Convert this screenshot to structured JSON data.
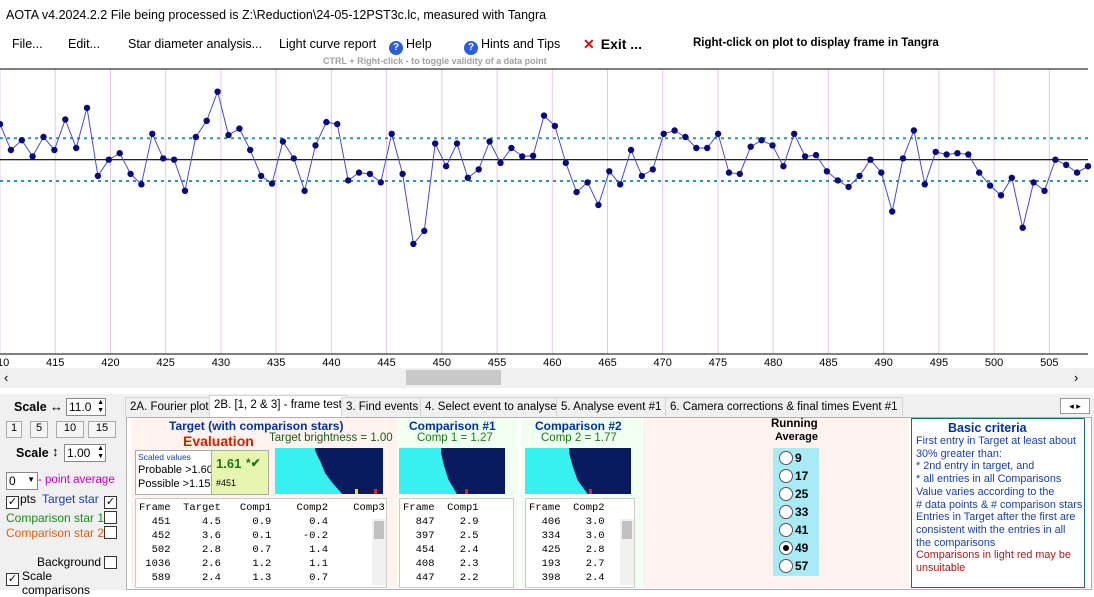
{
  "title_bar": {
    "text": "AOTA v4.2024.2.2     File being processed is Z:\\Reduction\\24-05-12PST3c.lc, measured with Tangra"
  },
  "menu": {
    "file": "File...",
    "edit": "Edit...",
    "star_diameter": "Star diameter analysis...",
    "light_curve": "Light curve report",
    "help": "Help",
    "hints": "Hints and Tips",
    "exit": "Exit ...",
    "right_click_hint": "Right-click on plot to display frame in Tangra",
    "ctrl_hint": "CTRL + Right-click  -  to toggle validity of a data point"
  },
  "plot": {
    "x_ticks": [
      "410",
      "415",
      "420",
      "425",
      "430",
      "435",
      "440",
      "445",
      "450",
      "455",
      "460",
      "465",
      "470",
      "475",
      "480",
      "485",
      "490",
      "495",
      "500",
      "505"
    ],
    "x_start": 410,
    "x_end": 508.5,
    "values": [
      0.55,
      0.15,
      0.3,
      0.05,
      0.35,
      0.15,
      0.62,
      0.18,
      0.8,
      -0.25,
      0.0,
      0.1,
      -0.22,
      -0.38,
      0.4,
      0.02,
      0.0,
      -0.48,
      0.35,
      0.6,
      1.05,
      0.38,
      0.48,
      0.15,
      -0.25,
      -0.37,
      0.28,
      0.02,
      -0.48,
      0.22,
      0.58,
      0.55,
      -0.32,
      -0.2,
      -0.22,
      -0.35,
      0.4,
      -0.22,
      -1.3,
      -1.1,
      0.25,
      -0.1,
      0.25,
      -0.28,
      -0.15,
      0.28,
      -0.05,
      0.18,
      0.05,
      0.06,
      0.68,
      0.52,
      -0.05,
      -0.5,
      -0.35,
      -0.7,
      -0.18,
      -0.38,
      0.15,
      -0.25,
      -0.15,
      0.4,
      0.45,
      0.35,
      0.18,
      0.18,
      0.4,
      -0.2,
      -0.22,
      0.2,
      0.3,
      0.22,
      -0.1,
      0.4,
      0.05,
      0.07,
      -0.18,
      -0.32,
      -0.42,
      -0.25,
      0.0,
      -0.2,
      -0.8,
      0.02,
      0.45,
      -0.38,
      0.12,
      0.08,
      0.1,
      0.08,
      -0.2,
      -0.4,
      -0.55,
      -0.28,
      -1.05,
      -0.35,
      -0.48,
      0.0,
      -0.08,
      -0.2,
      -0.1
    ],
    "band_upper": 0.33,
    "band_lower": -0.33,
    "ylim": [
      -3.0,
      1.4
    ]
  },
  "tabs": [
    "2A. Fourier plot",
    "2B. [1, 2 & 3] - frame test",
    "3. Find events",
    "4. Select event to analyse",
    "5. Analyse event #1",
    "6. Camera corrections & final times Event #1"
  ],
  "left_panel": {
    "scale_h_label": "Scale",
    "scale_h_arrow": "↔",
    "scale_h_value": "11.0",
    "buttons": [
      "1",
      "5",
      "10",
      "15"
    ],
    "scale_v_label": "Scale",
    "scale_v_arrow": "↕",
    "scale_v_value": "1.00",
    "point_avg_value": "0",
    "point_avg_label": "- point average",
    "pts_label": "pts",
    "target_star": "Target star",
    "comparison1": "Comparison star 1",
    "comparison2": "Comparison star 2",
    "background": "Background",
    "scale_comparisons": "Scale comparisons"
  },
  "target_panel": {
    "heading": "Target (with comparison stars)",
    "evaluation": "Evaluation",
    "brightness": "Target  brightness = 1.00",
    "scaled_values": "Scaled values",
    "probable": "Probable >1.60",
    "possible": "Possible  >1.15",
    "score": "1.61",
    "score_mark": "*✔",
    "score_frame": "#451",
    "headers": "Frame  Target   Comp1    Comp2    Comp3",
    "rows": [
      "  451     4.5     0.9      0.4",
      "  452     3.6     0.1     -0.2",
      "  502     2.8     0.7      1.4",
      " 1036     2.6     1.2      1.1",
      "  589     2.4     1.3      0.7"
    ]
  },
  "comp1_panel": {
    "heading": "Comparison #1",
    "sub": "Comp 1 = 1.27",
    "headers": "Frame  Comp1",
    "rows": [
      "  847    2.9",
      "  397    2.5",
      "  454    2.4",
      "  408    2.3",
      "  447    2.2"
    ]
  },
  "comp2_panel": {
    "heading": "Comparison #2",
    "sub": "Comp 2 = 1.77",
    "headers": "Frame  Comp2",
    "rows": [
      "  406    3.0",
      "  334    3.0",
      "  425    2.8",
      "  193    2.7",
      "  398    2.4"
    ]
  },
  "running_average": {
    "heading1": "Running",
    "heading2": "Average",
    "options": [
      "9",
      "17",
      "25",
      "33",
      "41",
      "49",
      "57"
    ],
    "selected": "49"
  },
  "criteria": {
    "heading": "Basic criteria",
    "lines": [
      {
        "text": "First entry in Target at least about",
        "color": "#1a3fa8"
      },
      {
        "text": "30% greater than:",
        "color": "#1a3fa8"
      },
      {
        "text": "*  2nd  entry in target, and",
        "color": "#1a3fa8"
      },
      {
        "text": "*  all entries in all Comparisons",
        "color": "#1a3fa8"
      },
      {
        "text": "Value varies according to the",
        "color": "#1a3fa8"
      },
      {
        "text": "# data points & # comparison stars",
        "color": "#1a3fa8"
      },
      {
        "text": "Entries in Target after the first are",
        "color": "#1a3fa8"
      },
      {
        "text": "consistent with the entries in all",
        "color": "#1a3fa8"
      },
      {
        "text": "the comparisons",
        "color": "#1a3fa8"
      },
      {
        "text": "Comparisons in light red may be",
        "color": "#b01818"
      },
      {
        "text": "unsuitable",
        "color": "#b01818"
      }
    ]
  },
  "colors": {
    "accent_blue": "#1a3fa8",
    "point": "#0a0a80",
    "band": "#2a9a9a",
    "target_heading": "#003399",
    "evaluation": "#cc2200"
  }
}
